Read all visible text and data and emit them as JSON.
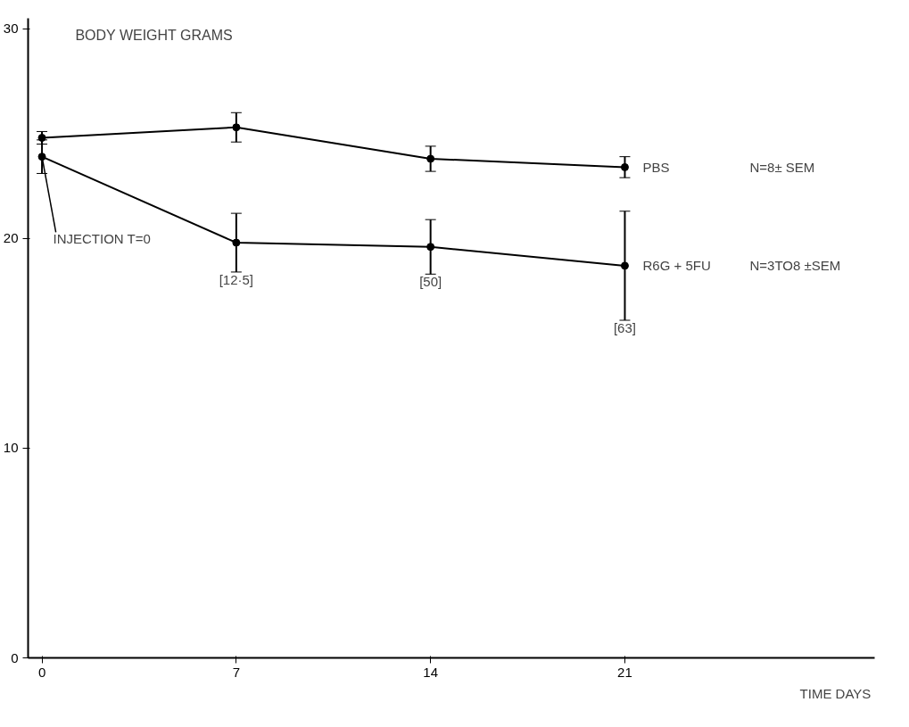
{
  "chart_data": {
    "type": "line",
    "title": "BODY WEIGHT   GRAMS",
    "xlabel": "TIME  DAYS",
    "x": [
      0,
      7,
      14,
      21
    ],
    "series": [
      {
        "name": "PBS",
        "color": "#000000",
        "values": [
          24.8,
          25.3,
          23.8,
          23.4
        ],
        "errors": [
          0.3,
          0.7,
          0.6,
          0.5
        ]
      },
      {
        "name": "R6G + 5FU",
        "color": "#000000",
        "values": [
          23.9,
          19.8,
          19.6,
          18.7
        ],
        "errors": [
          0.8,
          1.4,
          1.3,
          2.6
        ]
      }
    ],
    "annotations": [
      {
        "text": "INJECTION T=0",
        "x": 0,
        "y": 23.9
      },
      {
        "text": "[12·5]",
        "x": 7,
        "y": 18.4
      },
      {
        "text": "[50]",
        "x": 14,
        "y": 18.3
      },
      {
        "text": "[63]",
        "x": 21,
        "y": 16.1
      },
      "N=8± SEM",
      "N=3TO8 ±SEM"
    ],
    "xlim": [
      -0.5,
      30
    ],
    "ylim": [
      0,
      30.5
    ],
    "xticks": [
      0,
      7,
      14,
      21
    ],
    "yticks": [
      0,
      10,
      20,
      30
    ],
    "grid": false,
    "marker": "circle",
    "line_style": "solid"
  }
}
